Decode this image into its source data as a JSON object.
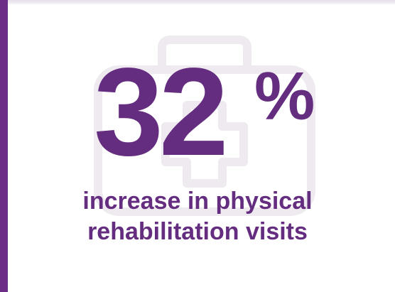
{
  "stat": {
    "value": "32",
    "unit": "%",
    "caption_line1": "increase in physical",
    "caption_line2": "rehabilitation visits"
  },
  "background_icon": "medical-kit-icon",
  "colors": {
    "accent": "#642d80",
    "left_bar": "#6b2d86",
    "background": "#ffffff",
    "icon_outline": "#eeeaf0"
  }
}
